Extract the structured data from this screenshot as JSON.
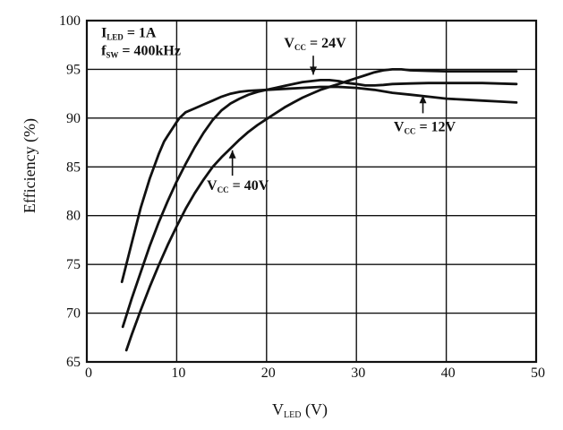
{
  "chart_data": {
    "type": "line",
    "title": "",
    "ylabel": "Efficiency (%)",
    "xlabel_parts": [
      {
        "t": "V"
      },
      {
        "t": "LED",
        "sub": true
      },
      {
        "t": " (V)"
      }
    ],
    "xlim": [
      0,
      50
    ],
    "ylim": [
      65,
      100
    ],
    "x_ticks": [
      0,
      10,
      20,
      30,
      40,
      50
    ],
    "y_ticks": [
      65,
      70,
      75,
      80,
      85,
      90,
      95,
      100
    ],
    "grid": true,
    "legend_position": "none",
    "line_color": "#111111",
    "conditions": {
      "pos": [
        1.6,
        98.3
      ],
      "lines": [
        {
          "parts": [
            {
              "t": "I"
            },
            {
              "t": "LED",
              "sub": true
            },
            {
              "t": " = 1A"
            }
          ]
        },
        {
          "parts": [
            {
              "t": "f"
            },
            {
              "t": "SW",
              "sub": true
            },
            {
              "t": " = 400kHz"
            }
          ]
        }
      ]
    },
    "series": [
      {
        "id": "vcc-12v",
        "name": "Vcc = 12V",
        "points": [
          [
            3.9,
            73.2
          ],
          [
            5,
            77.2
          ],
          [
            6,
            80.8
          ],
          [
            7,
            83.8
          ],
          [
            8,
            86.3
          ],
          [
            8.6,
            87.6
          ],
          [
            9,
            88.2
          ],
          [
            10,
            89.6
          ],
          [
            10.3,
            90
          ],
          [
            11,
            90.6
          ],
          [
            12,
            91.0
          ],
          [
            13,
            91.4
          ],
          [
            14,
            91.8
          ],
          [
            15,
            92.2
          ],
          [
            16,
            92.5
          ],
          [
            17,
            92.7
          ],
          [
            18,
            92.8
          ],
          [
            20,
            92.9
          ],
          [
            22,
            93.0
          ],
          [
            24,
            93.1
          ],
          [
            26,
            93.2
          ],
          [
            28,
            93.2
          ],
          [
            30,
            93.1
          ],
          [
            32,
            92.9
          ],
          [
            34,
            92.6
          ],
          [
            36,
            92.4
          ],
          [
            38,
            92.2
          ],
          [
            40,
            92.0
          ],
          [
            42,
            91.9
          ],
          [
            44,
            91.8
          ],
          [
            46,
            91.7
          ],
          [
            47.8,
            91.6
          ]
        ]
      },
      {
        "id": "vcc-24v",
        "name": "Vcc = 24V",
        "points": [
          [
            4,
            68.6
          ],
          [
            5,
            71.5
          ],
          [
            6,
            74.2
          ],
          [
            7,
            76.9
          ],
          [
            8,
            79.3
          ],
          [
            9,
            81.5
          ],
          [
            10,
            83.5
          ],
          [
            11,
            85.3
          ],
          [
            12,
            87.0
          ],
          [
            13,
            88.5
          ],
          [
            14,
            89.8
          ],
          [
            15,
            90.8
          ],
          [
            16,
            91.5
          ],
          [
            17,
            92.0
          ],
          [
            18,
            92.4
          ],
          [
            19,
            92.7
          ],
          [
            20,
            92.9
          ],
          [
            21,
            93.1
          ],
          [
            22,
            93.3
          ],
          [
            23,
            93.5
          ],
          [
            24,
            93.7
          ],
          [
            25,
            93.8
          ],
          [
            26,
            93.9
          ],
          [
            27,
            93.9
          ],
          [
            28,
            93.8
          ],
          [
            29,
            93.6
          ],
          [
            30,
            93.5
          ],
          [
            31,
            93.35
          ],
          [
            32,
            93.35
          ],
          [
            33,
            93.4
          ],
          [
            34,
            93.5
          ],
          [
            36,
            93.55
          ],
          [
            38,
            93.6
          ],
          [
            40,
            93.6
          ],
          [
            44,
            93.6
          ],
          [
            47.8,
            93.5
          ]
        ]
      },
      {
        "id": "vcc-40v",
        "name": "Vcc = 40V",
        "points": [
          [
            4.4,
            66.2
          ],
          [
            5,
            67.8
          ],
          [
            6,
            70.3
          ],
          [
            7,
            72.7
          ],
          [
            8,
            74.9
          ],
          [
            9,
            77.0
          ],
          [
            10,
            78.9
          ],
          [
            11,
            80.7
          ],
          [
            12,
            82.3
          ],
          [
            13,
            83.7
          ],
          [
            14,
            85.0
          ],
          [
            15,
            86.0
          ],
          [
            16,
            86.9
          ],
          [
            17,
            87.8
          ],
          [
            18,
            88.6
          ],
          [
            19,
            89.3
          ],
          [
            20,
            89.9
          ],
          [
            21,
            90.5
          ],
          [
            22,
            91.1
          ],
          [
            23,
            91.6
          ],
          [
            24,
            92.1
          ],
          [
            25,
            92.5
          ],
          [
            26,
            92.9
          ],
          [
            27,
            93.2
          ],
          [
            28,
            93.5
          ],
          [
            29,
            93.8
          ],
          [
            30,
            94.1
          ],
          [
            31,
            94.4
          ],
          [
            32,
            94.7
          ],
          [
            33,
            94.9
          ],
          [
            34,
            95.0
          ],
          [
            35,
            95.0
          ],
          [
            36,
            94.9
          ],
          [
            38,
            94.85
          ],
          [
            40,
            94.8
          ],
          [
            44,
            94.8
          ],
          [
            47.8,
            94.8
          ]
        ]
      }
    ],
    "annotations": [
      {
        "series_id": "vcc-24v",
        "label_parts": [
          {
            "t": "V"
          },
          {
            "t": "CC",
            "sub": true
          },
          {
            "t": " = 24V"
          }
        ],
        "label_center": [
          25.4,
          97.7
        ],
        "arrow_start": [
          25.2,
          96.4
        ],
        "arrow_tip": [
          25.2,
          94.45
        ]
      },
      {
        "series_id": "vcc-12v",
        "label_parts": [
          {
            "t": "V"
          },
          {
            "t": "CC",
            "sub": true
          },
          {
            "t": " = 12V"
          }
        ],
        "label_center": [
          37.6,
          89.1
        ],
        "arrow_start": [
          37.4,
          90.5
        ],
        "arrow_tip": [
          37.4,
          92.35
        ]
      },
      {
        "series_id": "vcc-40v",
        "label_parts": [
          {
            "t": "V"
          },
          {
            "t": "CC",
            "sub": true
          },
          {
            "t": " = 40V"
          }
        ],
        "label_center": [
          16.8,
          83.1
        ],
        "arrow_start": [
          16.2,
          84.1
        ],
        "arrow_tip": [
          16.2,
          86.7
        ]
      }
    ]
  }
}
